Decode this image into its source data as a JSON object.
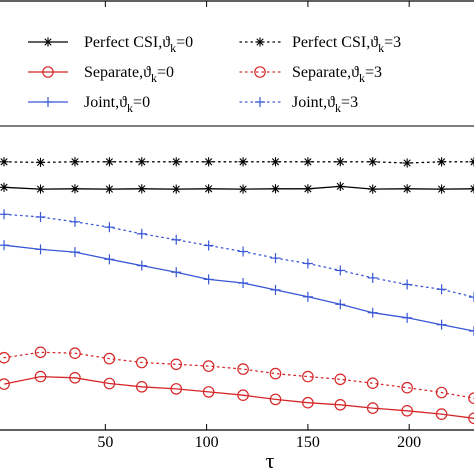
{
  "chart_data": {
    "type": "line",
    "xlabel": "τ",
    "ylabel": "",
    "title": "",
    "xlim": [
      -2,
      232
    ],
    "ylim": [
      0,
      100
    ],
    "x_ticks": [
      50,
      100,
      150,
      200
    ],
    "grid": false,
    "legend_placement": "top",
    "legend_columns": 2,
    "series": [
      {
        "name": "Perfect CSI,ϑ_k=0",
        "color": "#000000",
        "line": "solid",
        "marker": "star",
        "x": [
          0,
          18,
          35,
          52,
          68,
          85,
          101,
          118,
          134,
          150,
          166,
          182,
          199,
          216,
          232
        ],
        "y": [
          80.9,
          80.3,
          80.4,
          80.3,
          80.4,
          80.3,
          80.4,
          80.3,
          80.4,
          80.4,
          81.2,
          80.3,
          80.4,
          80.3,
          80.4
        ]
      },
      {
        "name": "Separate,ϑ_k=0",
        "color": "#d62728",
        "line": "solid",
        "marker": "circle",
        "x": [
          0,
          18,
          35,
          52,
          68,
          85,
          101,
          118,
          134,
          150,
          166,
          182,
          199,
          216,
          232
        ],
        "y": [
          15.3,
          17.8,
          17.4,
          15.5,
          14.4,
          13.7,
          12.7,
          11.6,
          10.2,
          9.1,
          8.4,
          7.3,
          6.4,
          5.3,
          3.9
        ]
      },
      {
        "name": "Joint,ϑ_k=0",
        "color": "#3a57d6",
        "line": "solid",
        "marker": "plus",
        "x": [
          0,
          18,
          35,
          52,
          68,
          85,
          101,
          118,
          134,
          150,
          166,
          182,
          199,
          216,
          232
        ],
        "y": [
          61.6,
          60.2,
          59.3,
          56.9,
          54.8,
          52.6,
          50.2,
          49.0,
          46.7,
          44.4,
          41.9,
          39.1,
          37.4,
          35.1,
          33.0
        ]
      },
      {
        "name": "Perfect CSI,ϑ_k=3",
        "color": "#000000",
        "line": "dotted",
        "marker": "star",
        "x": [
          0,
          18,
          35,
          52,
          68,
          85,
          101,
          118,
          134,
          150,
          166,
          182,
          199,
          216,
          232
        ],
        "y": [
          89.4,
          89.2,
          89.4,
          89.4,
          89.4,
          89.4,
          89.4,
          89.4,
          89.4,
          89.4,
          89.4,
          89.4,
          89.0,
          89.4,
          89.4
        ]
      },
      {
        "name": "Separate,ϑ_k=3",
        "color": "#d62728",
        "line": "dotted",
        "marker": "circle",
        "x": [
          0,
          18,
          35,
          52,
          68,
          85,
          101,
          118,
          134,
          150,
          166,
          182,
          199,
          216,
          232
        ],
        "y": [
          24.1,
          25.9,
          25.6,
          23.8,
          22.5,
          21.9,
          21.3,
          20.3,
          18.8,
          17.8,
          16.9,
          15.6,
          14.1,
          12.5,
          10.6
        ]
      },
      {
        "name": "Joint,ϑ_k=3",
        "color": "#3a57d6",
        "line": "dotted",
        "marker": "plus",
        "x": [
          0,
          18,
          35,
          52,
          68,
          85,
          101,
          118,
          134,
          150,
          166,
          182,
          199,
          216,
          232
        ],
        "y": [
          71.9,
          71.0,
          69.4,
          67.6,
          65.4,
          63.4,
          61.5,
          59.5,
          57.3,
          55.5,
          53.2,
          50.7,
          48.5,
          46.9,
          44.3
        ]
      }
    ]
  }
}
